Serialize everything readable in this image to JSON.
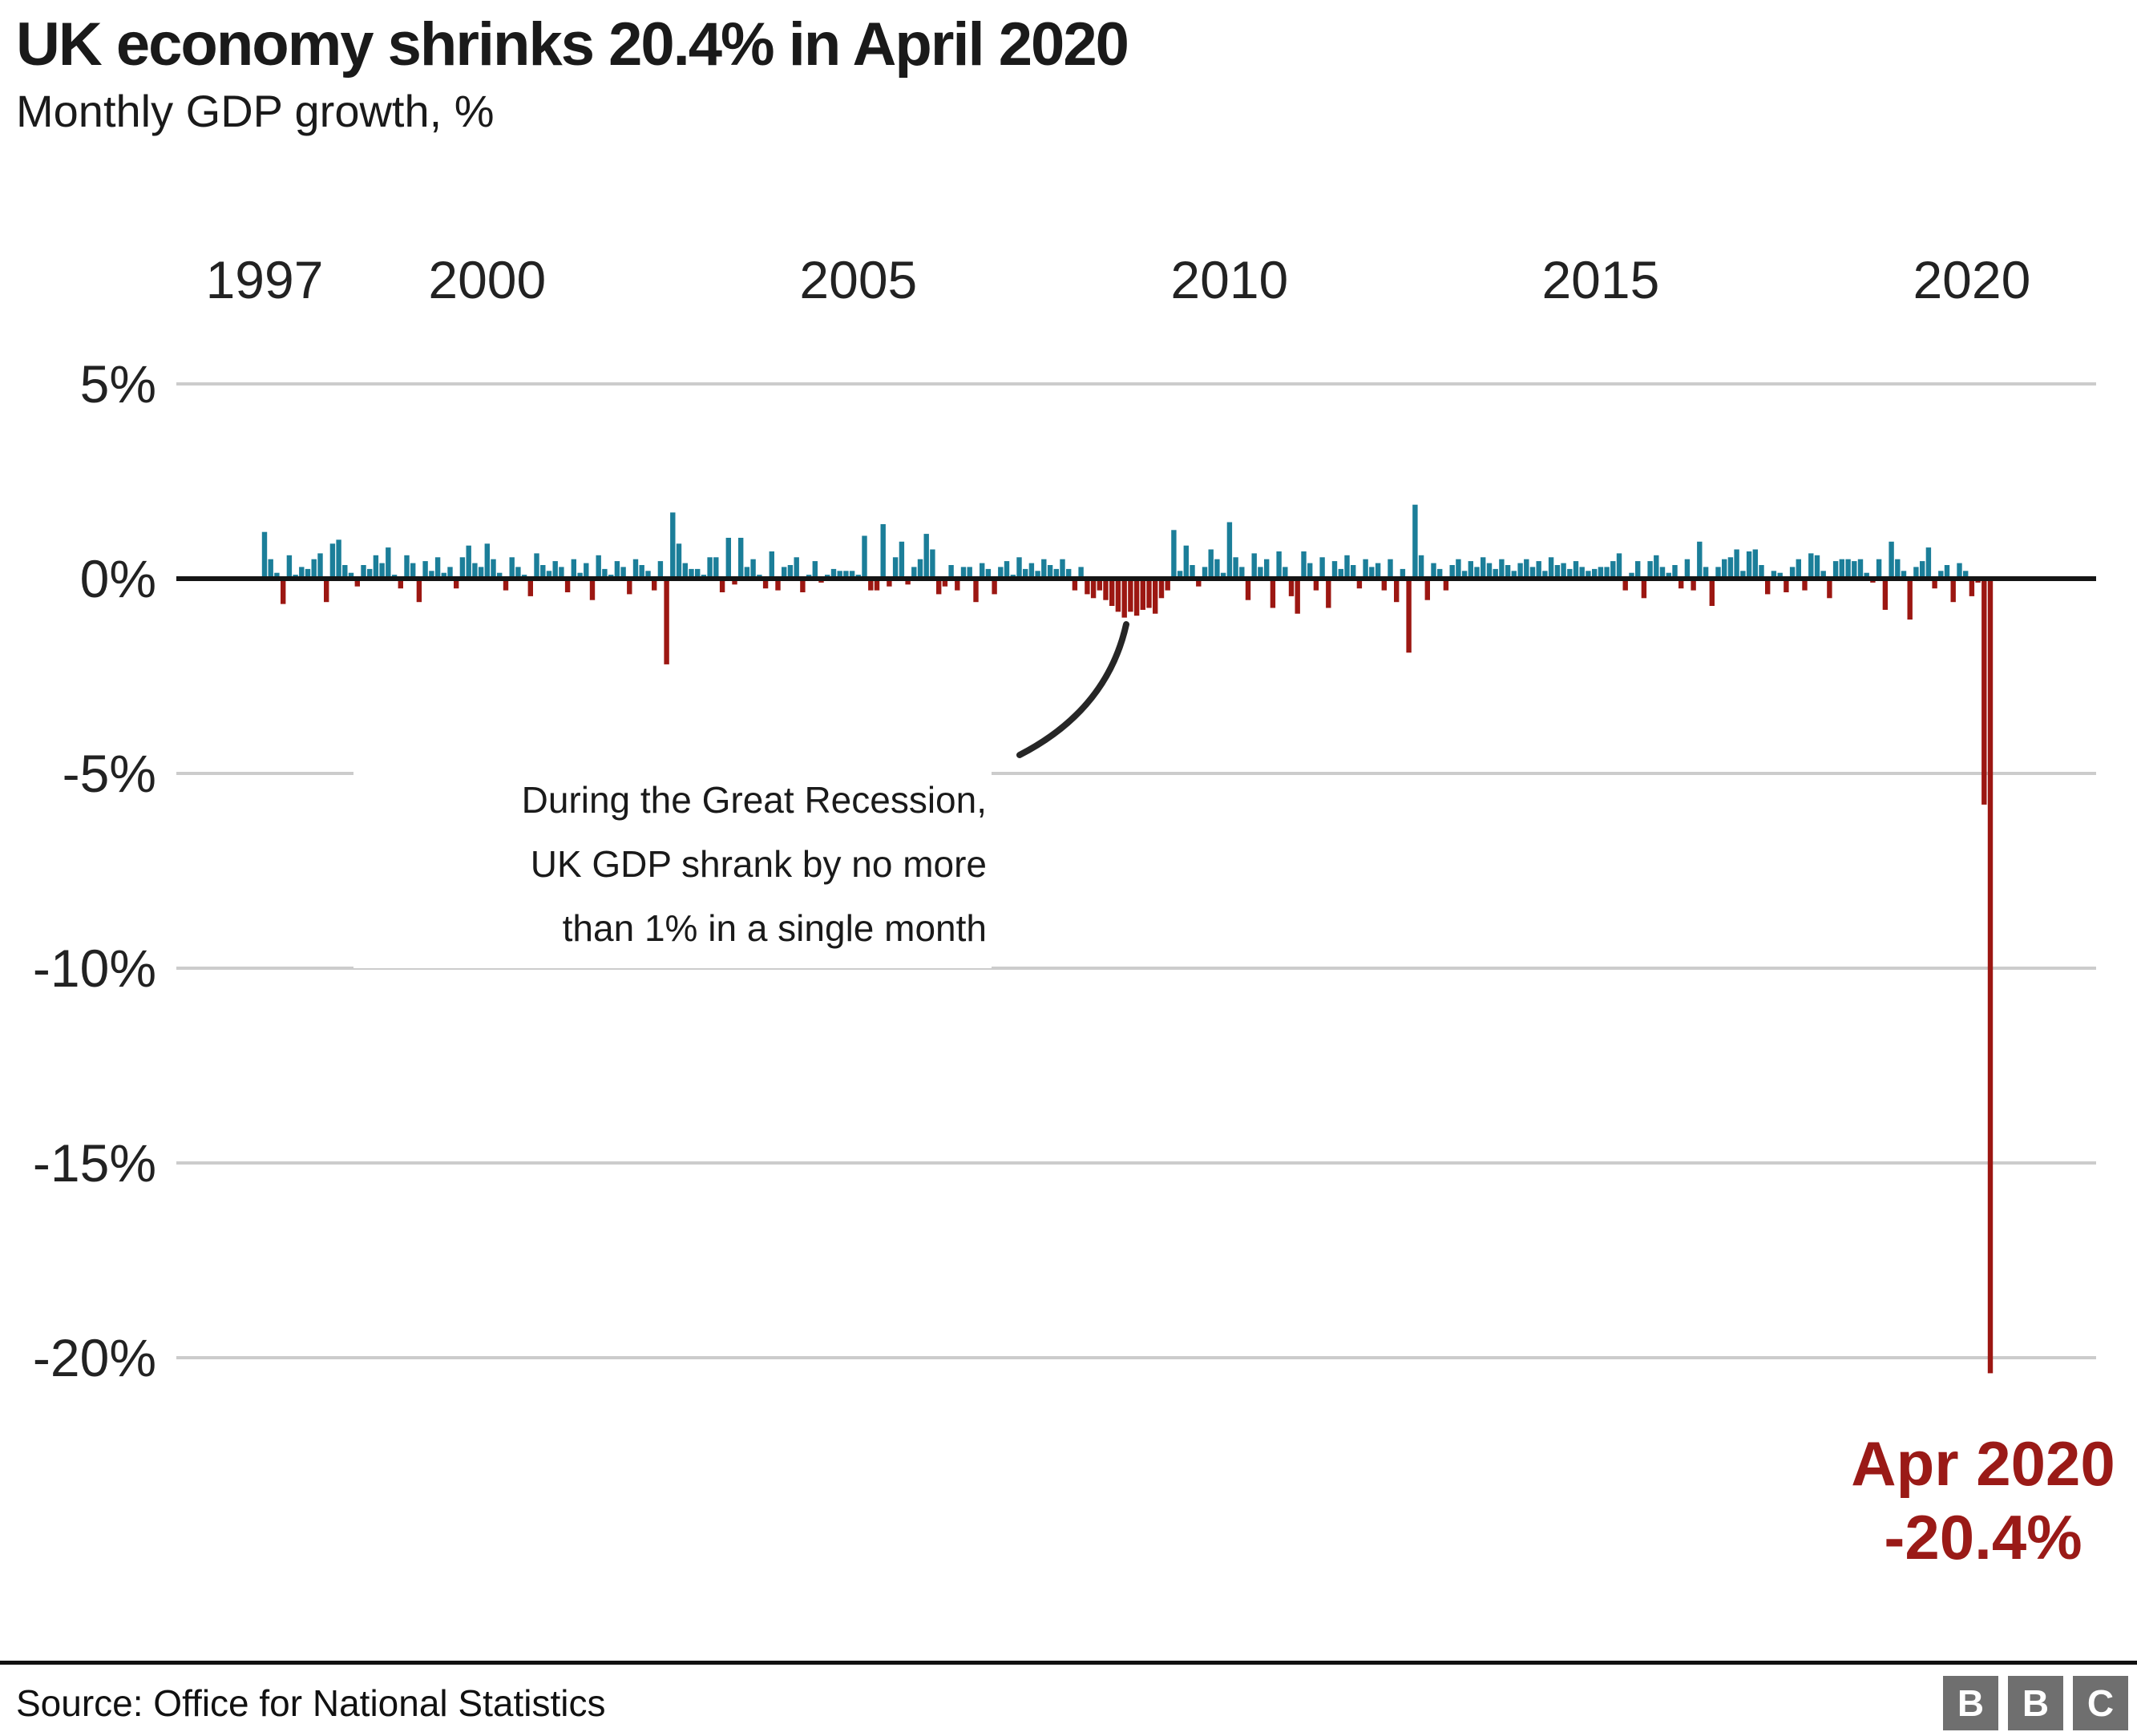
{
  "header": {
    "title": "UK economy shrinks 20.4% in April 2020",
    "subtitle": "Monthly GDP growth, %"
  },
  "chart_data": {
    "type": "bar",
    "title": "UK economy shrinks 20.4% in April 2020",
    "subtitle": "Monthly GDP growth, %",
    "unit": "%",
    "x_start": "1997-01",
    "x_end": "2020-04",
    "x_tick_labels": [
      "1997",
      "2000",
      "2005",
      "2010",
      "2015",
      "2020"
    ],
    "y_ticks": [
      {
        "label": "5%",
        "value": 5
      },
      {
        "label": "0%",
        "value": 0
      },
      {
        "label": "-5%",
        "value": -5
      },
      {
        "label": "-10%",
        "value": -10
      },
      {
        "label": "-15%",
        "value": -15
      },
      {
        "label": "-20%",
        "value": -20
      }
    ],
    "ylim": [
      -21.5,
      5.5
    ],
    "grid": true,
    "legend": "none",
    "positive_color": "#1b7e99",
    "negative_color": "#9c1712",
    "values": [
      1.2,
      0.5,
      0.15,
      -0.65,
      0.6,
      0.1,
      0.3,
      0.25,
      0.5,
      0.65,
      -0.6,
      0.9,
      1.0,
      0.35,
      0.15,
      -0.2,
      0.35,
      0.25,
      0.6,
      0.4,
      0.8,
      0.1,
      -0.25,
      0.6,
      0.4,
      -0.6,
      0.45,
      0.2,
      0.55,
      0.15,
      0.3,
      -0.25,
      0.55,
      0.85,
      0.4,
      0.3,
      0.9,
      0.5,
      0.15,
      -0.3,
      0.55,
      0.3,
      0.1,
      -0.45,
      0.65,
      0.35,
      0.2,
      0.45,
      0.3,
      -0.35,
      0.5,
      0.15,
      0.4,
      -0.55,
      0.6,
      0.25,
      0.1,
      0.45,
      0.3,
      -0.4,
      0.5,
      0.35,
      0.2,
      -0.3,
      0.45,
      -2.2,
      1.7,
      0.9,
      0.4,
      0.25,
      0.25,
      0.1,
      0.55,
      0.55,
      -0.35,
      1.05,
      -0.15,
      1.05,
      0.3,
      0.5,
      0.1,
      -0.25,
      0.7,
      -0.3,
      0.3,
      0.35,
      0.55,
      -0.35,
      0.1,
      0.45,
      -0.1,
      0.1,
      0.25,
      0.2,
      0.2,
      0.2,
      0.1,
      1.1,
      -0.3,
      -0.3,
      1.4,
      -0.2,
      0.55,
      0.95,
      -0.15,
      0.3,
      0.5,
      1.15,
      0.75,
      -0.4,
      -0.2,
      0.35,
      -0.3,
      0.3,
      0.3,
      -0.6,
      0.4,
      0.25,
      -0.4,
      0.3,
      0.45,
      0.1,
      0.55,
      0.25,
      0.4,
      0.2,
      0.5,
      0.35,
      0.25,
      0.5,
      0.25,
      -0.3,
      0.3,
      -0.4,
      -0.5,
      -0.3,
      -0.55,
      -0.7,
      -0.85,
      -1.0,
      -0.85,
      -0.95,
      -0.8,
      -0.75,
      -0.9,
      -0.5,
      -0.3,
      1.25,
      0.2,
      0.85,
      0.35,
      -0.2,
      0.3,
      0.75,
      0.5,
      0.15,
      1.45,
      0.55,
      0.3,
      -0.55,
      0.65,
      0.3,
      0.5,
      -0.75,
      0.7,
      0.3,
      -0.45,
      -0.9,
      0.7,
      0.4,
      -0.3,
      0.55,
      -0.75,
      0.45,
      0.25,
      0.6,
      0.35,
      -0.25,
      0.5,
      0.3,
      0.4,
      -0.3,
      0.5,
      -0.6,
      0.25,
      -1.9,
      1.9,
      0.6,
      -0.55,
      0.4,
      0.25,
      -0.3,
      0.35,
      0.5,
      0.2,
      0.45,
      0.3,
      0.55,
      0.4,
      0.25,
      0.5,
      0.35,
      0.2,
      0.4,
      0.5,
      0.3,
      0.45,
      0.2,
      0.55,
      0.35,
      0.4,
      0.25,
      0.45,
      0.3,
      0.2,
      0.25,
      0.3,
      0.3,
      0.45,
      0.65,
      -0.3,
      0.15,
      0.45,
      -0.5,
      0.45,
      0.6,
      0.3,
      0.15,
      0.35,
      -0.25,
      0.5,
      -0.3,
      0.95,
      0.3,
      -0.7,
      0.3,
      0.5,
      0.55,
      0.75,
      0.2,
      0.7,
      0.75,
      0.35,
      -0.4,
      0.2,
      0.15,
      -0.35,
      0.3,
      0.5,
      -0.3,
      0.65,
      0.6,
      0.2,
      -0.5,
      0.45,
      0.5,
      0.5,
      0.45,
      0.5,
      0.15,
      -0.1,
      0.5,
      -0.8,
      0.95,
      0.5,
      0.2,
      -1.05,
      0.3,
      0.45,
      0.8,
      -0.25,
      0.2,
      0.35,
      -0.6,
      0.4,
      0.2,
      -0.45,
      -0.1,
      -5.8,
      -20.4
    ],
    "annotations": [
      {
        "text": "During the Great Recession, UK GDP shrank by no more than 1% in a single month",
        "target": "2008-2009 bars"
      },
      {
        "text": "Apr 2020 -20.4%",
        "target": "2020-04 bar"
      }
    ]
  },
  "annotation": {
    "lines": [
      "During the Great Recession,",
      "UK GDP shrank by no more",
      "than 1% in a single month"
    ]
  },
  "highlight_label": {
    "line1": "Apr 2020",
    "line2": "-20.4%",
    "color": "#9a1a17"
  },
  "footer": {
    "source": "Source: Office for National Statistics",
    "logo_letters": [
      "B",
      "B",
      "C"
    ]
  }
}
